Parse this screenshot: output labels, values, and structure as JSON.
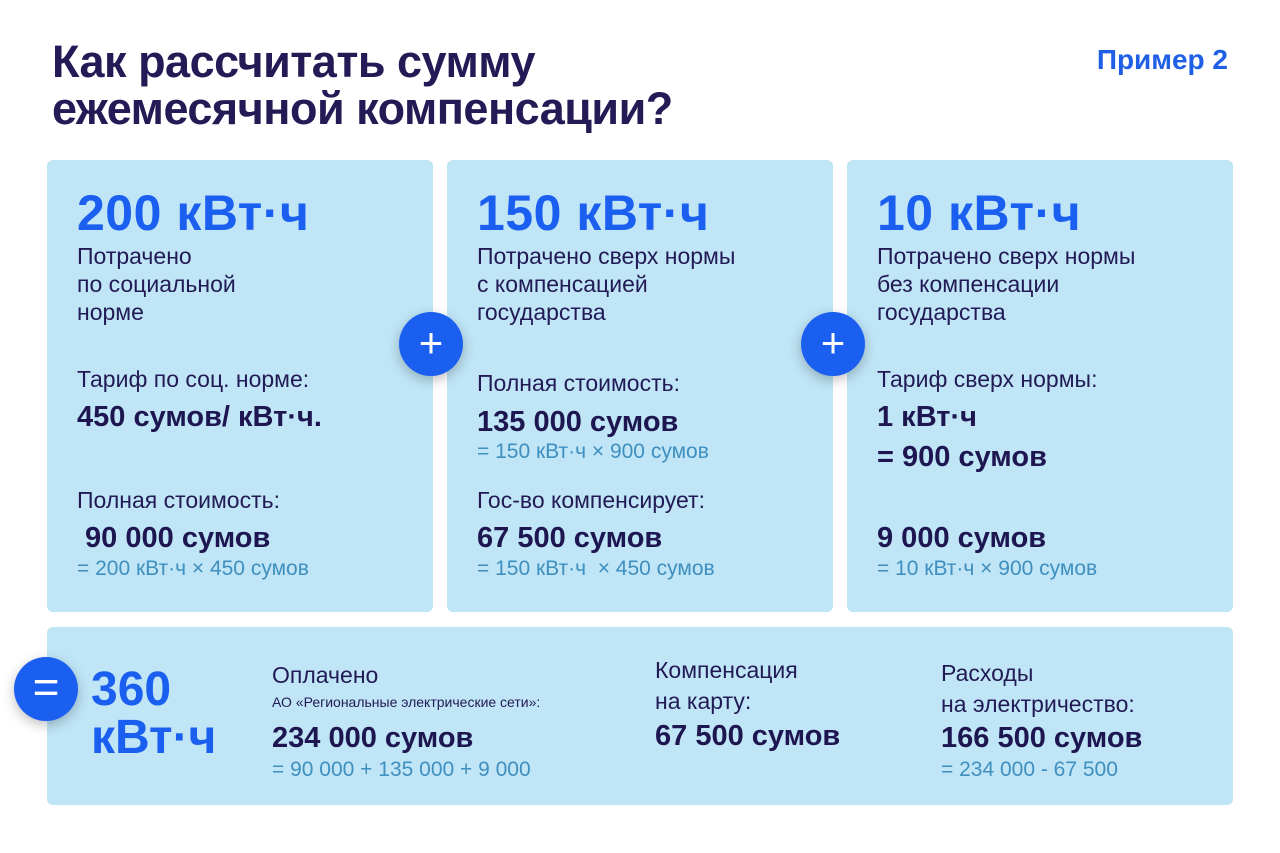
{
  "header": {
    "title_line1": "Как рассчитать сумму",
    "title_line2": "ежемесячной компенсации?",
    "example_label": "Пример 2"
  },
  "cards": [
    {
      "amount": "200 кВт·ч",
      "description": "Потрачено\nпо  социальной\nнорме",
      "tariff_label": "Тариф по соц. норме:",
      "tariff_value": "450 сумов/ кВт·ч.",
      "cost_label": "Полная стоимость:",
      "cost_value": " 90 000 сумов",
      "cost_formula": "= 200 кВт·ч × 450 сумов"
    },
    {
      "amount": "150 кВт·ч",
      "description": "Потрачено сверх нормы\nс компенсацией\nгосударства",
      "cost_label": "Полная стоимость:",
      "cost_value": "135 000 сумов",
      "cost_formula": "= 150 кВт·ч × 900 сумов",
      "comp_label": "Гос-во компенсирует:",
      "comp_value": "67 500 сумов",
      "comp_formula": "= 150 кВт·ч  × 450 сумов"
    },
    {
      "amount": "10 кВт·ч",
      "description": "Потрачено сверх нормы\nбез компенсации\nгосударства",
      "tariff_label": "Тариф сверх нормы:",
      "tariff_value": "1 кВт·ч\n= 900 сумов",
      "cost_value": "9 000 сумов",
      "cost_formula": "= 10 кВт·ч × 900 сумов"
    }
  ],
  "operators": {
    "plus": "+",
    "equals": "="
  },
  "summary": {
    "total": "360\nкВт·ч",
    "paid_label": "Оплачено",
    "paid_sub": "АО «Региональные электрические сети»:",
    "paid_value": "234 000 сумов",
    "paid_formula": "= 90 000 + 135 000 + 9 000",
    "comp_label": "Компенсация\nна карту:",
    "comp_value": "67 500 сумов",
    "expense_label": "Расходы\nна электричество:",
    "expense_value": "166 500 сумов",
    "expense_formula": "= 234 000 - 67 500"
  }
}
